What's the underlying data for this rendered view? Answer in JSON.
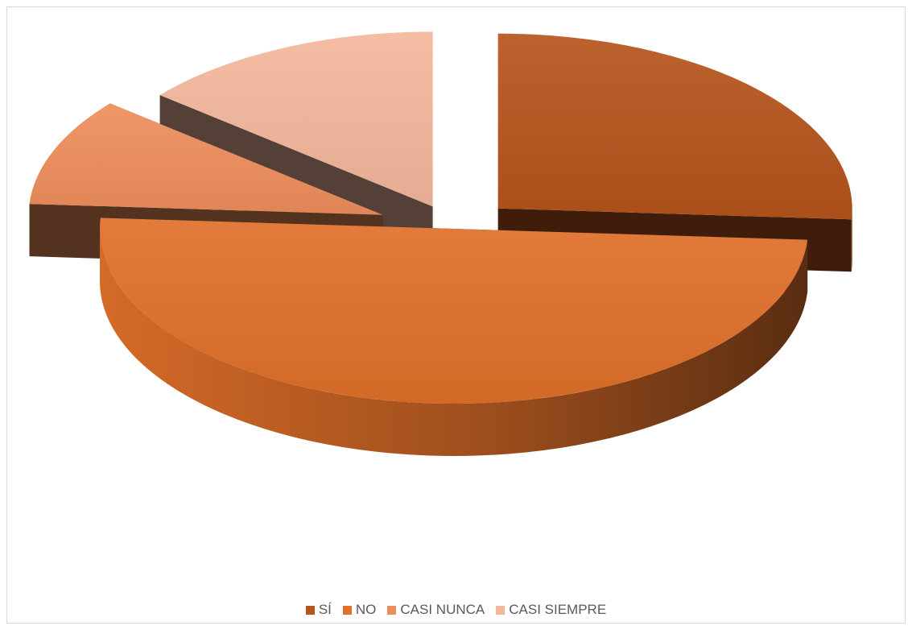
{
  "chart_data": {
    "type": "pie",
    "variant": "3d-exploded",
    "title": "",
    "categories": [
      "SÍ",
      "NO",
      "CASI NUNCA",
      "CASI SIEMPRE"
    ],
    "values": [
      26,
      50,
      10,
      14
    ],
    "colors": [
      "#b5541c",
      "#e0702a",
      "#ee8e5c",
      "#f3b79c"
    ],
    "legend": {
      "position": "bottom",
      "items": [
        {
          "label": "SÍ",
          "color": "#b5541c"
        },
        {
          "label": "NO",
          "color": "#e0702a"
        },
        {
          "label": "CASI NUNCA",
          "color": "#ee8e5c"
        },
        {
          "label": "CASI SIEMPRE",
          "color": "#f3b79c"
        }
      ]
    }
  }
}
